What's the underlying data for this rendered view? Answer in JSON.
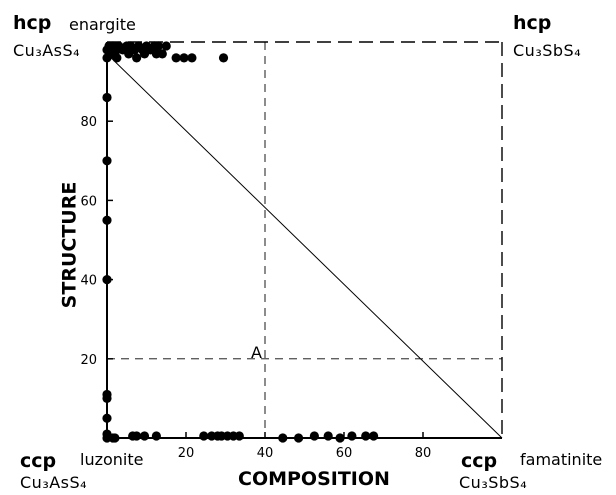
{
  "corner_labels": {
    "top_left": {
      "lattice": "hcp",
      "mineral": "enargite",
      "formula": "Cu₃AsS₄"
    },
    "top_right": {
      "lattice": "hcp",
      "formula": "Cu₃SbS₄"
    },
    "bottom_left": {
      "lattice": "ccp",
      "mineral": "luzonite",
      "formula": "Cu₃AsS₄"
    },
    "bottom_right": {
      "lattice": "ccp",
      "mineral": "famatinite",
      "formula": "Cu₃SbS₄"
    }
  },
  "chart_data": {
    "type": "scatter",
    "title": "",
    "xlabel": "COMPOSITION",
    "ylabel": "STRUCTURE",
    "xlim": [
      0,
      100
    ],
    "ylim": [
      0,
      100
    ],
    "x_ticks": [
      20,
      40,
      60,
      80
    ],
    "y_ticks": [
      20,
      40,
      60,
      80
    ],
    "grid": false,
    "annotation": {
      "text": "A",
      "x": 40,
      "y": 20,
      "guides": "dashed"
    },
    "tie_line": {
      "from": [
        0,
        97
      ],
      "to": [
        100,
        0
      ]
    },
    "series": [
      {
        "points": [
          [
            0,
            0
          ],
          [
            0,
            1
          ],
          [
            0,
            5
          ],
          [
            0,
            10
          ],
          [
            0,
            11
          ],
          [
            0,
            40
          ],
          [
            0,
            55
          ],
          [
            0,
            70
          ],
          [
            0,
            86
          ],
          [
            0,
            96
          ],
          [
            0,
            98
          ],
          [
            0.5,
            99
          ],
          [
            1.5,
            99
          ],
          [
            1.5,
            97
          ],
          [
            2.5,
            98
          ],
          [
            2.5,
            96
          ],
          [
            3,
            99
          ],
          [
            4,
            98
          ],
          [
            5,
            99
          ],
          [
            5.5,
            97
          ],
          [
            6,
            99
          ],
          [
            7,
            98
          ],
          [
            7.5,
            96
          ],
          [
            8,
            99
          ],
          [
            9,
            98
          ],
          [
            9.5,
            97
          ],
          [
            10,
            99
          ],
          [
            11,
            98
          ],
          [
            12,
            99
          ],
          [
            12.5,
            97
          ],
          [
            13,
            99
          ],
          [
            14,
            97
          ],
          [
            15,
            99
          ],
          [
            17.5,
            96
          ],
          [
            19.5,
            96
          ],
          [
            21.5,
            96
          ],
          [
            29.5,
            96
          ],
          [
            1.5,
            0
          ],
          [
            2,
            0
          ],
          [
            6.5,
            0.5
          ],
          [
            7.5,
            0.5
          ],
          [
            9.5,
            0.5
          ],
          [
            12.5,
            0.5
          ],
          [
            24.5,
            0.5
          ],
          [
            26.5,
            0.5
          ],
          [
            28,
            0.5
          ],
          [
            29,
            0.5
          ],
          [
            30.5,
            0.5
          ],
          [
            32,
            0.5
          ],
          [
            33.5,
            0.5
          ],
          [
            44.5,
            0
          ],
          [
            48.5,
            0
          ],
          [
            52.5,
            0.5
          ],
          [
            56,
            0.5
          ],
          [
            59,
            0
          ],
          [
            62,
            0.5
          ],
          [
            65.5,
            0.5
          ],
          [
            67.5,
            0.5
          ]
        ]
      }
    ]
  }
}
